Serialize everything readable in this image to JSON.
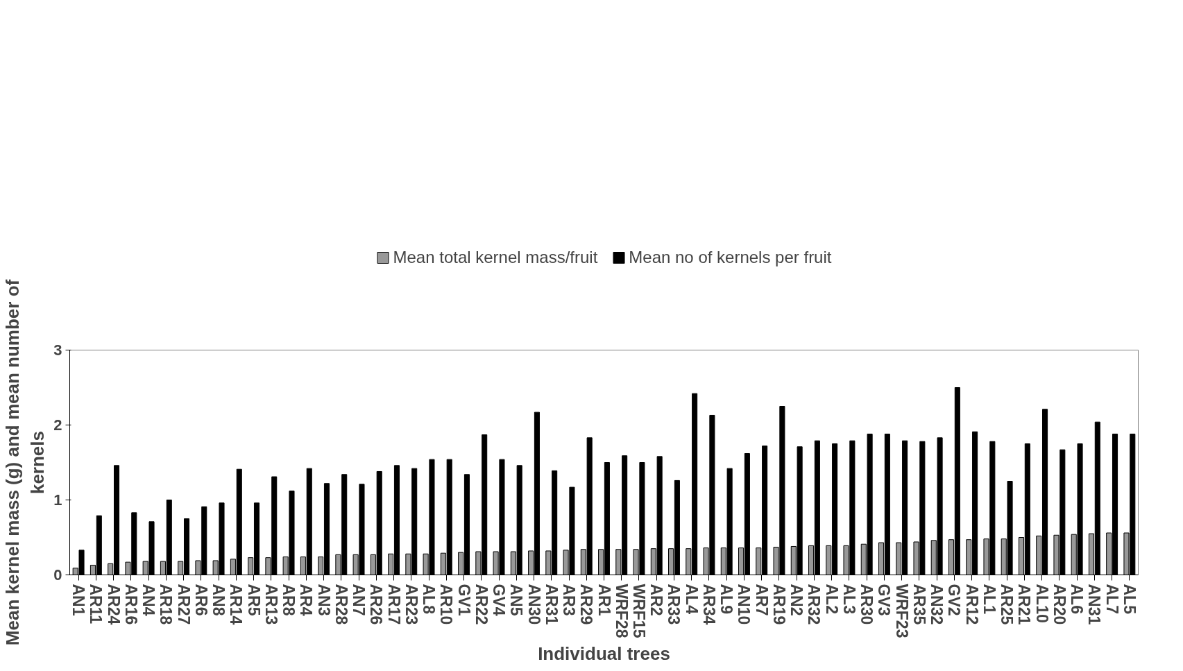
{
  "chart_data": {
    "type": "bar",
    "xlabel": "Individual trees",
    "ylabel": "Mean kernel mass (g) and mean number of kernels",
    "categories": [
      "AN1",
      "AR11",
      "AR24",
      "AR16",
      "AN4",
      "AR18",
      "AR27",
      "AR6",
      "AN8",
      "AR14",
      "AR5",
      "AR13",
      "AR8",
      "AR4",
      "AN3",
      "AR28",
      "AN7",
      "AR26",
      "AR17",
      "AR23",
      "AL8",
      "AR10",
      "GV1",
      "AR22",
      "GV4",
      "AN5",
      "AN30",
      "AR31",
      "AR3",
      "AR29",
      "AR1",
      "WRF28",
      "WRF15",
      "AR2",
      "AR33",
      "AL4",
      "AR34",
      "AL9",
      "AN10",
      "AR7",
      "AR19",
      "AN2",
      "AR32",
      "AL2",
      "AL3",
      "AR30",
      "GV3",
      "WRF23",
      "AR35",
      "AN32",
      "GV2",
      "AR12",
      "AL1",
      "AR25",
      "AR21",
      "AL10",
      "AR20",
      "AL6",
      "AN31",
      "AL7",
      "AL5"
    ],
    "series": [
      {
        "name": "Mean total kernel mass/fruit",
        "color": "#999999",
        "values": [
          0.09,
          0.13,
          0.15,
          0.17,
          0.18,
          0.18,
          0.18,
          0.19,
          0.19,
          0.21,
          0.23,
          0.23,
          0.24,
          0.24,
          0.24,
          0.27,
          0.27,
          0.27,
          0.28,
          0.28,
          0.28,
          0.29,
          0.3,
          0.31,
          0.31,
          0.31,
          0.32,
          0.32,
          0.33,
          0.34,
          0.34,
          0.34,
          0.34,
          0.35,
          0.35,
          0.35,
          0.36,
          0.36,
          0.36,
          0.36,
          0.37,
          0.38,
          0.39,
          0.39,
          0.39,
          0.41,
          0.43,
          0.43,
          0.44,
          0.46,
          0.47,
          0.47,
          0.48,
          0.48,
          0.5,
          0.52,
          0.53,
          0.54,
          0.55,
          0.56,
          0.56
        ]
      },
      {
        "name": "Mean no of kernels per fruit",
        "color": "#000000",
        "values": [
          0.33,
          0.79,
          1.46,
          0.83,
          0.71,
          1.0,
          0.75,
          0.91,
          0.96,
          1.41,
          0.96,
          1.31,
          1.12,
          1.42,
          1.22,
          1.34,
          1.21,
          1.38,
          1.46,
          1.42,
          1.54,
          1.54,
          1.34,
          1.87,
          1.54,
          1.46,
          2.17,
          1.39,
          1.17,
          1.83,
          1.5,
          1.59,
          1.5,
          1.58,
          1.26,
          2.42,
          2.13,
          1.42,
          1.62,
          1.72,
          2.25,
          1.71,
          1.79,
          1.75,
          1.79,
          1.88,
          1.88,
          1.79,
          1.78,
          1.83,
          2.5,
          1.91,
          1.78,
          1.25,
          1.75,
          2.21,
          1.67,
          1.75,
          2.04,
          1.88,
          1.88
        ]
      }
    ],
    "ylim": [
      0,
      3
    ],
    "yticks": [
      0,
      1,
      2,
      3
    ],
    "grid": false,
    "legend": "top"
  }
}
